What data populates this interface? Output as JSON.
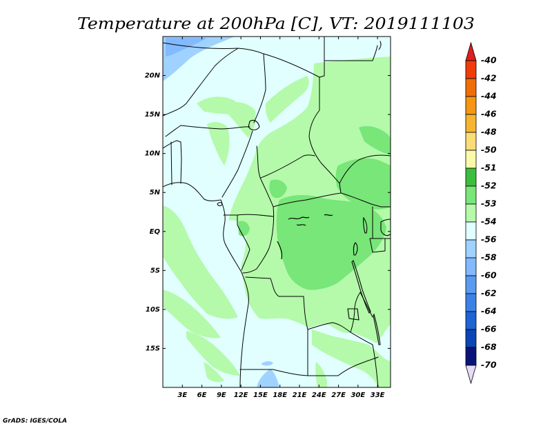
{
  "title": "Temperature at 200hPa [C], VT: 2019111103",
  "credit": "GrADS: IGES/COLA",
  "map": {
    "lon_range": [
      0,
      35
    ],
    "lat_range": [
      -20,
      25
    ],
    "lat_ticks": [
      {
        "value": 20,
        "label": "20N"
      },
      {
        "value": 15,
        "label": "15N"
      },
      {
        "value": 10,
        "label": "10N"
      },
      {
        "value": 5,
        "label": "5N"
      },
      {
        "value": 0,
        "label": "EQ"
      },
      {
        "value": -5,
        "label": "5S"
      },
      {
        "value": -10,
        "label": "10S"
      },
      {
        "value": -15,
        "label": "15S"
      }
    ],
    "lon_ticks": [
      {
        "value": 3,
        "label": "3E"
      },
      {
        "value": 6,
        "label": "6E"
      },
      {
        "value": 9,
        "label": "9E"
      },
      {
        "value": 12,
        "label": "12E"
      },
      {
        "value": 15,
        "label": "15E"
      },
      {
        "value": 18,
        "label": "18E"
      },
      {
        "value": 21,
        "label": "21E"
      },
      {
        "value": 24,
        "label": "24E"
      },
      {
        "value": 27,
        "label": "27E"
      },
      {
        "value": 30,
        "label": "30E"
      },
      {
        "value": 33,
        "label": "33E"
      }
    ]
  },
  "legend": {
    "levels": [
      "-40",
      "-42",
      "-44",
      "-46",
      "-48",
      "-50",
      "-51",
      "-52",
      "-53",
      "-54",
      "-56",
      "-58",
      "-60",
      "-62",
      "-64",
      "-66",
      "-68",
      "-70"
    ],
    "colors": [
      "#e01e1e",
      "#f03c0a",
      "#f06e0a",
      "#f59614",
      "#f5b432",
      "#fadc78",
      "#fafaaa",
      "#3cbe3c",
      "#78e678",
      "#b4faaa",
      "#e1ffff",
      "#a0d2ff",
      "#82b9ff",
      "#5a9bf0",
      "#3c82e6",
      "#1e64d2",
      "#0a46b4",
      "#0a1478",
      "#e6dcf5"
    ]
  }
}
